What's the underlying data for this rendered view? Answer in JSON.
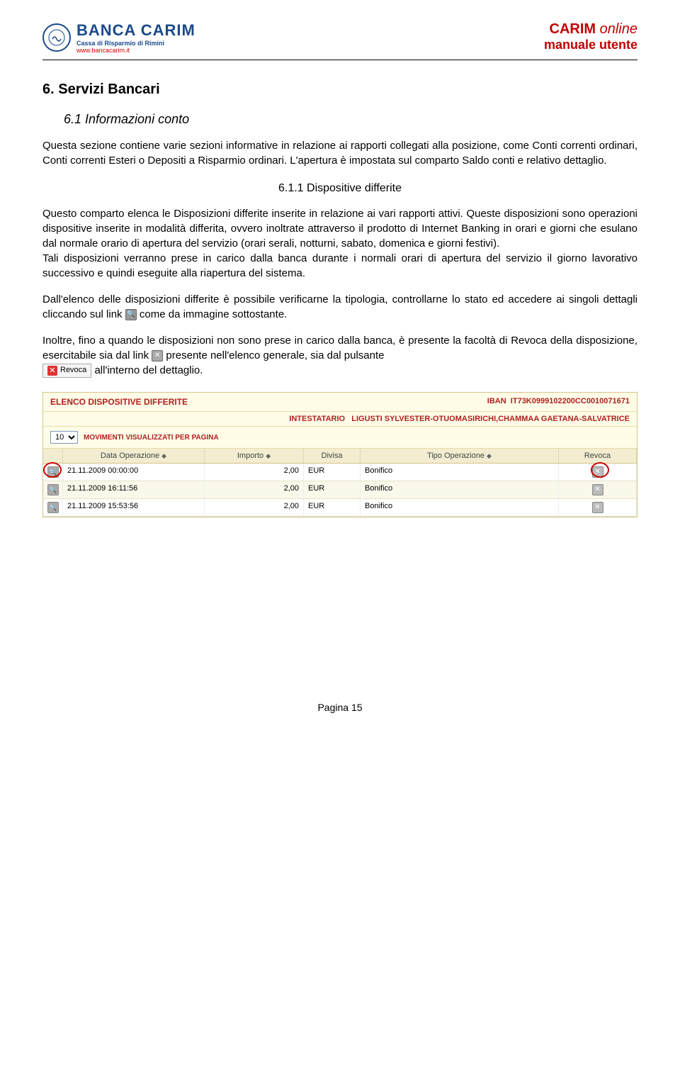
{
  "header": {
    "logo_main": "BANCA CARIM",
    "logo_sub": "Cassa di Risparmio di Rimini",
    "logo_url": "www.bancacarim.it",
    "right_line1a": "CARIM",
    "right_line1b": "online",
    "right_line2": "manuale utente"
  },
  "doc": {
    "h1": "6.   Servizi Bancari",
    "h2": "6.1  Informazioni conto",
    "p1": "Questa sezione contiene varie sezioni informative in relazione ai rapporti collegati alla posizione, come Conti correnti ordinari, Conti correnti Esteri o Depositi a Risparmio ordinari. L'apertura è impostata sul comparto Saldo conti e relativo dettaglio.",
    "h3": "6.1.1 Dispositive differite",
    "p2": "Questo comparto elenca le Disposizioni differite inserite in relazione ai vari rapporti attivi. Queste disposizioni sono operazioni dispositive inserite in modalità differita, ovvero inoltrate attraverso il prodotto di Internet Banking in orari e giorni che  esulano dal normale orario di apertura del servizio (orari serali, notturni, sabato, domenica e giorni festivi).",
    "p3": "Tali disposizioni verranno prese in carico dalla banca durante i normali orari di apertura del servizio il giorno lavorativo successivo e quindi eseguite alla riapertura del sistema.",
    "p4a": "Dall'elenco delle disposizioni differite è possibile verificarne la tipologia, controllarne lo stato ed accedere ai singoli dettagli cliccando sul link ",
    "p4b": "  come da immagine sottostante.",
    "p5a": "Inoltre, fino a quando le disposizioni non sono prese in carico dalla banca, è presente la facoltà di Revoca della disposizione, esercitabile sia dal link ",
    "p5b": "  presente nell'elenco generale, sia dal pulsante ",
    "p5c": "  all'interno del dettaglio.",
    "revoca_label": "Revoca"
  },
  "table": {
    "title": "ELENCO DISPOSITIVE DIFFERITE",
    "iban_label": "IBAN",
    "iban": "IT73K0999102200CC0010071671",
    "intestatario_label": "INTESTATARIO",
    "intestatario": "LIGUSTI SYLVESTER-OTUOMASIRICHI,CHAMMAA GAETANA-SALVATRICE",
    "pager_value": "10",
    "pager_label": "MOVIMENTI VISUALIZZATI PER PAGINA",
    "columns": {
      "date": "Data Operazione",
      "import": "Importo",
      "divisa": "Divisa",
      "tipo": "Tipo Operazione",
      "revoca": "Revoca"
    },
    "rows": [
      {
        "date": "21.11.2009 00:00:00",
        "import": "2,00",
        "divisa": "EUR",
        "tipo": "Bonifico",
        "highlight": true
      },
      {
        "date": "21.11.2009 16:11:56",
        "import": "2,00",
        "divisa": "EUR",
        "tipo": "Bonifico",
        "highlight": false
      },
      {
        "date": "21.11.2009 15:53:56",
        "import": "2,00",
        "divisa": "EUR",
        "tipo": "Bonifico",
        "highlight": false
      }
    ]
  },
  "page_num": "Pagina 15",
  "colors": {
    "brand_blue": "#1a4a8a",
    "brand_red": "#c00000",
    "panel_bg": "#fffde8",
    "panel_border": "#d4c38a",
    "header_row_bg": "#f2edd0",
    "highlight_circle": "#c00"
  }
}
